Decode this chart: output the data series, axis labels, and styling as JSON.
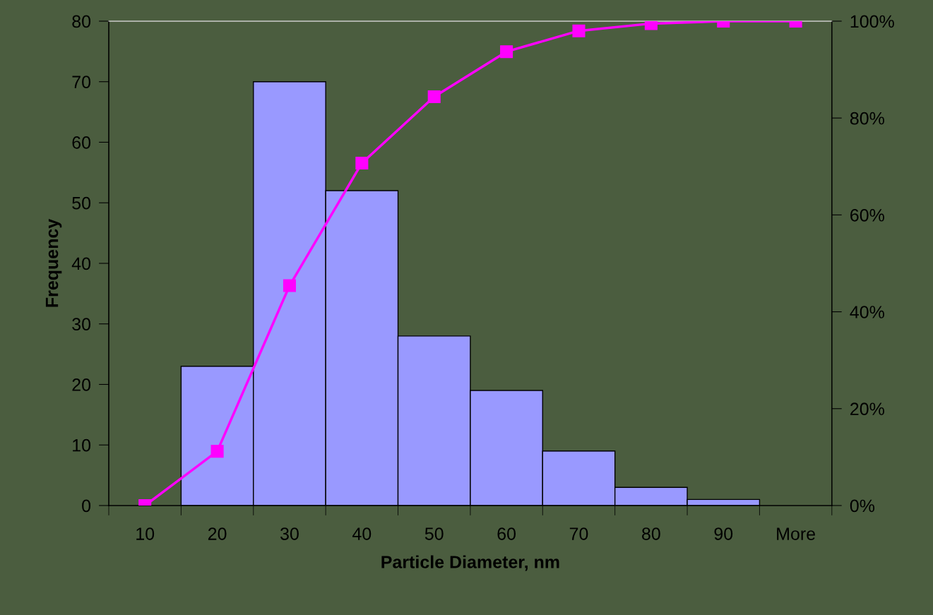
{
  "chart_data": {
    "type": "bar",
    "xlabel": "Particle Diameter, nm",
    "ylabel": "Frequency",
    "categories": [
      "10",
      "20",
      "30",
      "40",
      "50",
      "60",
      "70",
      "80",
      "90",
      "More"
    ],
    "series": [
      {
        "color": "#9999ff",
        "values": [
          0,
          23,
          70,
          52,
          28,
          19,
          9,
          3,
          1,
          0
        ]
      },
      {
        "type": "line",
        "axis": "y2",
        "color": "#ff00ff",
        "marker": "square",
        "values": [
          0,
          11.2,
          45.4,
          70.7,
          84.4,
          93.7,
          98.0,
          99.5,
          100,
          100
        ]
      }
    ],
    "ylim": [
      0,
      80
    ],
    "yticks": [
      0,
      10,
      20,
      30,
      40,
      50,
      60,
      70,
      80
    ],
    "y2lim": [
      0,
      100
    ],
    "y2ticks": [
      {
        "value": 0,
        "label": "0%"
      },
      {
        "value": 20,
        "label": "20%"
      },
      {
        "value": 40,
        "label": "40%"
      },
      {
        "value": 60,
        "label": "60%"
      },
      {
        "value": 80,
        "label": "80%"
      },
      {
        "value": 100,
        "label": "100%"
      }
    ],
    "grid": false
  }
}
